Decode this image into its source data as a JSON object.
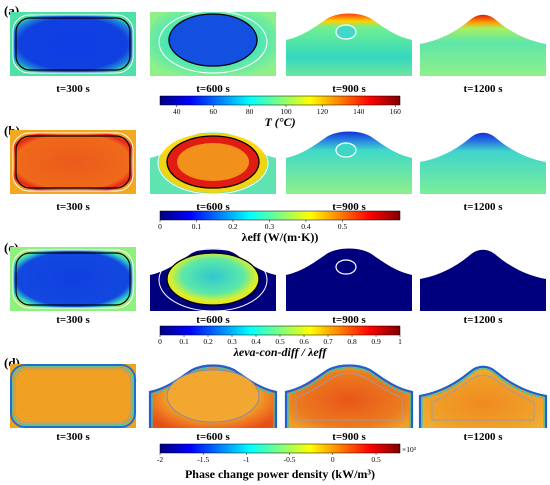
{
  "panels": [
    {
      "label": "(a)"
    },
    {
      "label": "(b)"
    },
    {
      "label": "(c)"
    },
    {
      "label": "(d)"
    }
  ],
  "times": [
    "t=300 s",
    "t=600 s",
    "t=900 s",
    "t=1200 s"
  ],
  "colorbars": [
    {
      "ticks": [
        "40",
        "60",
        "80",
        "100",
        "120",
        "140",
        "160"
      ],
      "title": "T (°C)",
      "exponent": ""
    },
    {
      "ticks": [
        "0",
        "0.1",
        "0.2",
        "0.3",
        "0.4",
        "0.5"
      ],
      "title": "λeff  (W/(m·K))",
      "exponent": ""
    },
    {
      "ticks": [
        "0",
        "0.1",
        "0.2",
        "0.3",
        "0.4",
        "0.5",
        "0.6",
        "0.7",
        "0.8",
        "0.9",
        "1"
      ],
      "title": "λeva-con-diff / λeff",
      "exponent": ""
    },
    {
      "ticks": [
        "-2",
        "-1.5",
        "-1",
        "-0.5",
        "0",
        "0.5"
      ],
      "title": "Phase change power density  (kW/m³)",
      "exponent": "×10³"
    }
  ],
  "colors": {
    "jet": [
      "#00007f",
      "#0000ff",
      "#007fff",
      "#00ffff",
      "#7fff7f",
      "#ffff00",
      "#ff7f00",
      "#ff0000",
      "#7f0000"
    ],
    "deep_blue": "#00007f",
    "mid_blue": "#1e3fd8",
    "cyan_green": "#36d6b8",
    "orange": "#f2a023",
    "red": "#e11c12",
    "contour_black": "#000000",
    "contour_white": "#ffffff"
  }
}
